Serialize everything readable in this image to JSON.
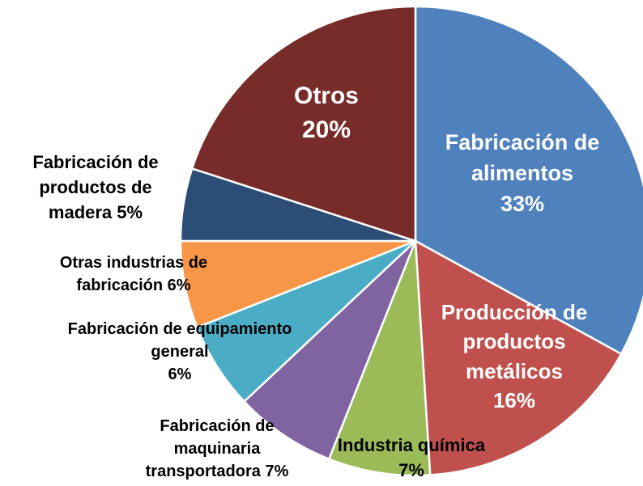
{
  "chart_data": {
    "type": "pie",
    "categories": [
      "Fabricación de alimentos",
      "Producción de productos metálicos",
      "Industria química",
      "Fabricación de maquinaria transportadora",
      "Fabricación de equipamiento general",
      "Otras industrias de fabricación",
      "Fabricación de productos de madera",
      "Otros"
    ],
    "values": [
      33,
      16,
      7,
      7,
      6,
      6,
      5,
      20
    ],
    "value_labels": [
      "33%",
      "16%",
      "7%",
      "7%",
      "6%",
      "6%",
      "5%",
      "20%"
    ],
    "colors": [
      "#4f81bd",
      "#c0504d",
      "#9bbb59",
      "#8064a2",
      "#4bacc6",
      "#f79646",
      "#2c4d75",
      "#772c2a"
    ]
  }
}
